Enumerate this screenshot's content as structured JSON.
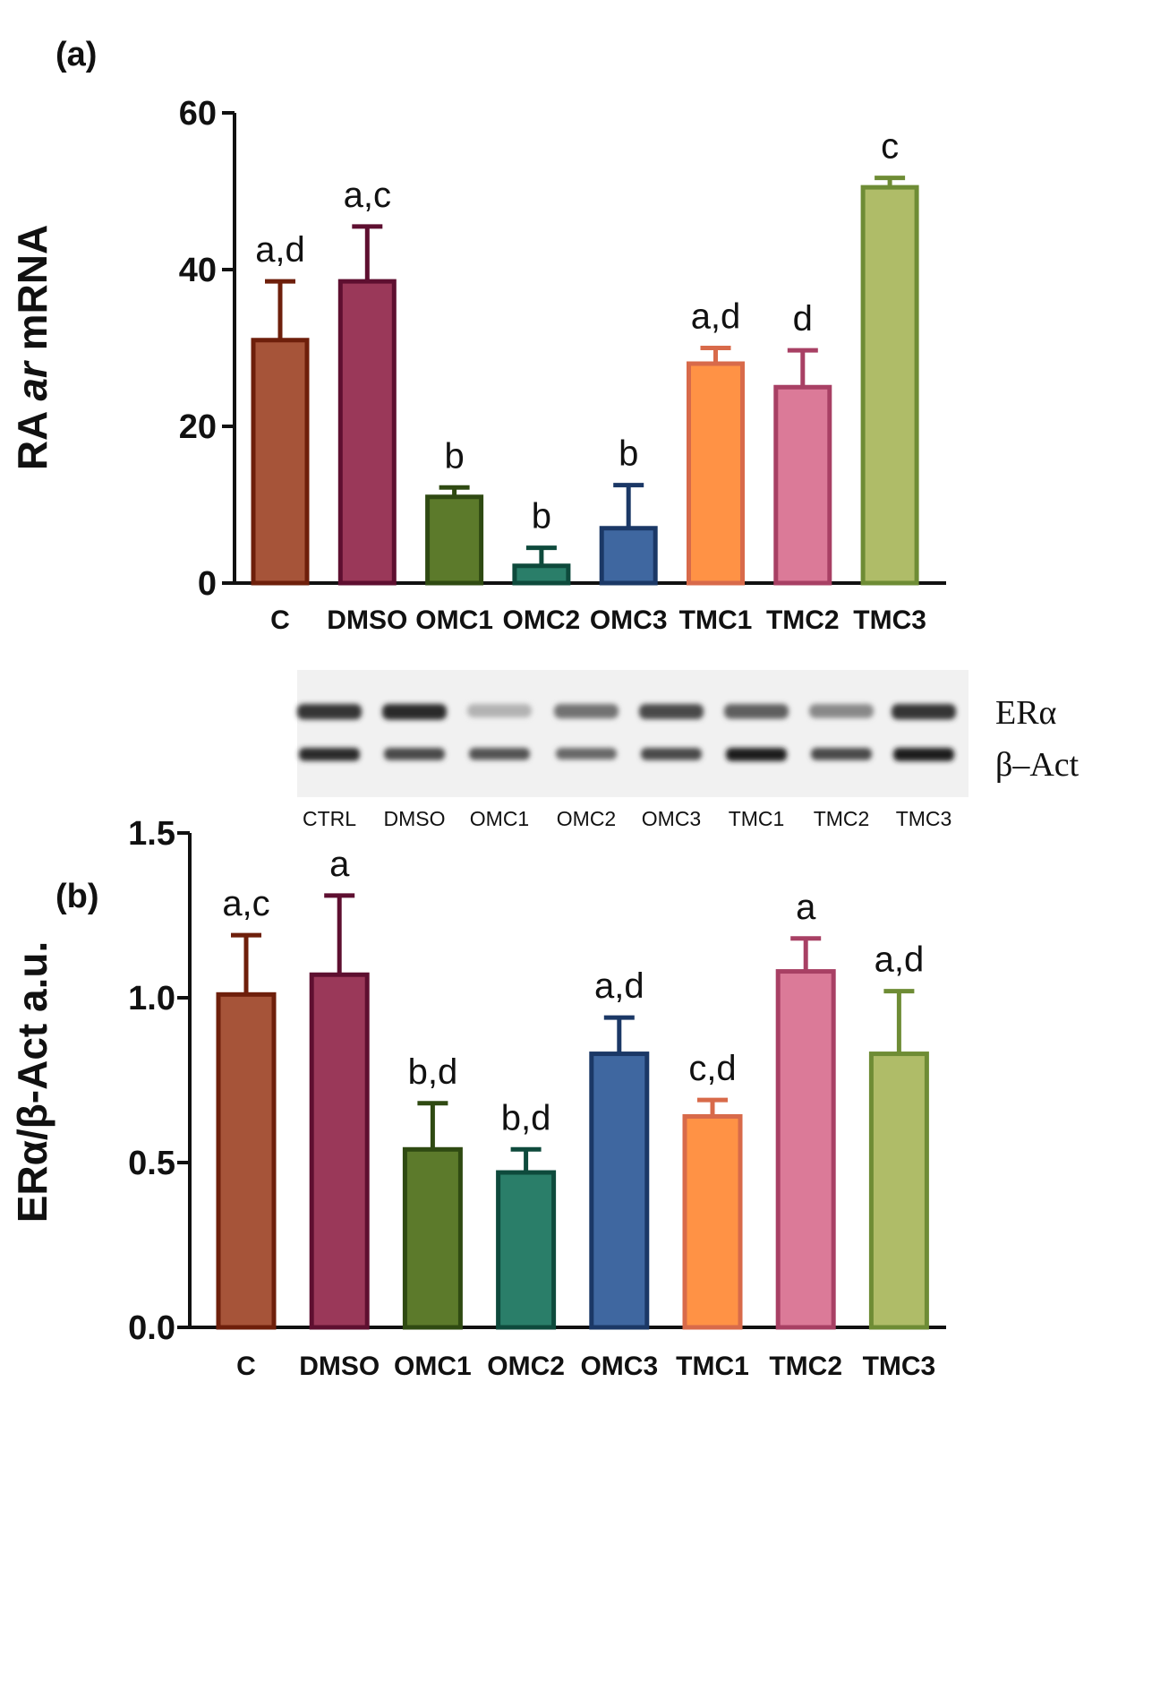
{
  "panels": {
    "a": {
      "label": "(a)"
    },
    "b": {
      "label": "(b)"
    }
  },
  "blot": {
    "lanes": [
      "CTRL",
      "DMSO",
      "OMC1",
      "OMC2",
      "OMC3",
      "TMC1",
      "TMC2",
      "TMC3"
    ],
    "proteins": [
      "ERα",
      "β–Act"
    ],
    "era_intensity": [
      0.85,
      0.9,
      0.25,
      0.55,
      0.75,
      0.65,
      0.45,
      0.85
    ],
    "bact_intensity": [
      0.9,
      0.75,
      0.7,
      0.6,
      0.75,
      0.95,
      0.75,
      0.95
    ]
  },
  "chart_data": [
    {
      "type": "bar",
      "panel": "(a)",
      "ylabel_parts": [
        "RA ",
        "ar",
        " mRNA"
      ],
      "xlabel": "",
      "ylim": [
        0,
        60
      ],
      "yticks": [
        0,
        20,
        40,
        60
      ],
      "ytick_labels": [
        "0",
        "20",
        "40",
        "60"
      ],
      "categories": [
        "C",
        "DMSO",
        "OMC1",
        "OMC2",
        "OMC3",
        "TMC1",
        "TMC2",
        "TMC3"
      ],
      "values": [
        31,
        38.5,
        11,
        2.2,
        7,
        28,
        25,
        50.5
      ],
      "errors": [
        7.5,
        7,
        1.2,
        2.3,
        5.5,
        2,
        4.7,
        1.2
      ],
      "letters": [
        "a,d",
        "a,c",
        "b",
        "b",
        "b",
        "a,d",
        "d",
        "c"
      ],
      "colors": [
        {
          "fill": "#A65439",
          "stroke": "#6E1F0B"
        },
        {
          "fill": "#9A3859",
          "stroke": "#5E0F30"
        },
        {
          "fill": "#5C7A2B",
          "stroke": "#2F4A12"
        },
        {
          "fill": "#2A7E69",
          "stroke": "#0E4A3C"
        },
        {
          "fill": "#3F67A0",
          "stroke": "#1B3866"
        },
        {
          "fill": "#FF9245",
          "stroke": "#D86A4A"
        },
        {
          "fill": "#DB7A98",
          "stroke": "#A84064"
        },
        {
          "fill": "#AFBC68",
          "stroke": "#6E8C35"
        }
      ]
    },
    {
      "type": "bar",
      "panel": "(b)",
      "ylabel_parts": [
        "ERα/β-Act a.u."
      ],
      "xlabel": "",
      "ylim": [
        0,
        1.5
      ],
      "yticks": [
        0,
        0.5,
        1.0,
        1.5
      ],
      "ytick_labels": [
        "0.0",
        "0.5",
        "1.0",
        "1.5"
      ],
      "categories": [
        "C",
        "DMSO",
        "OMC1",
        "OMC2",
        "OMC3",
        "TMC1",
        "TMC2",
        "TMC3"
      ],
      "values": [
        1.01,
        1.07,
        0.54,
        0.47,
        0.83,
        0.64,
        1.08,
        0.83
      ],
      "errors": [
        0.18,
        0.24,
        0.14,
        0.07,
        0.11,
        0.05,
        0.1,
        0.19
      ],
      "letters": [
        "a,c",
        "a",
        "b,d",
        "b,d",
        "a,d",
        "c,d",
        "a",
        "a,d"
      ],
      "colors": [
        {
          "fill": "#A65439",
          "stroke": "#6E1F0B"
        },
        {
          "fill": "#9A3859",
          "stroke": "#5E0F30"
        },
        {
          "fill": "#5C7A2B",
          "stroke": "#2F4A12"
        },
        {
          "fill": "#2A7E69",
          "stroke": "#0E4A3C"
        },
        {
          "fill": "#3F67A0",
          "stroke": "#1B3866"
        },
        {
          "fill": "#FF9245",
          "stroke": "#D86A4A"
        },
        {
          "fill": "#DB7A98",
          "stroke": "#A84064"
        },
        {
          "fill": "#AFBC68",
          "stroke": "#6E8C35"
        }
      ]
    }
  ]
}
